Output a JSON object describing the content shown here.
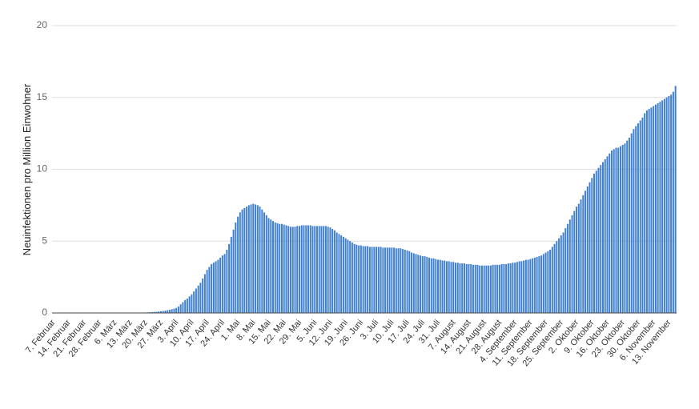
{
  "chart_data": {
    "type": "bar",
    "y_label": "Neuinfektionen pro Million Einwohner",
    "color": "#3f7fd0",
    "grid": true,
    "ylim": [
      0,
      20
    ],
    "yticks": [
      0,
      5,
      10,
      15,
      20
    ],
    "categories": [
      "7. Februar",
      null,
      null,
      null,
      null,
      null,
      null,
      "14. Februar",
      null,
      null,
      null,
      null,
      null,
      null,
      "21. Februar",
      null,
      null,
      null,
      null,
      null,
      null,
      "28. Februar",
      null,
      null,
      null,
      null,
      null,
      null,
      "6. März",
      null,
      null,
      null,
      null,
      null,
      null,
      "13. März",
      null,
      null,
      null,
      null,
      null,
      null,
      "20. März",
      null,
      null,
      null,
      null,
      null,
      null,
      "27. März",
      null,
      null,
      null,
      null,
      null,
      null,
      "3. April",
      null,
      null,
      null,
      null,
      null,
      null,
      "10. April",
      null,
      null,
      null,
      null,
      null,
      null,
      "17. April",
      null,
      null,
      null,
      null,
      null,
      null,
      "24. April",
      null,
      null,
      null,
      null,
      null,
      null,
      "1. Mai",
      null,
      null,
      null,
      null,
      null,
      null,
      "8. Mai",
      null,
      null,
      null,
      null,
      null,
      null,
      "15. Mai",
      null,
      null,
      null,
      null,
      null,
      null,
      "22. Mai",
      null,
      null,
      null,
      null,
      null,
      null,
      "29. Mai",
      null,
      null,
      null,
      null,
      null,
      null,
      "5. Juni",
      null,
      null,
      null,
      null,
      null,
      null,
      "12. Juni",
      null,
      null,
      null,
      null,
      null,
      null,
      "19. Juni",
      null,
      null,
      null,
      null,
      null,
      null,
      "26. Juni",
      null,
      null,
      null,
      null,
      null,
      null,
      "3. Juli",
      null,
      null,
      null,
      null,
      null,
      null,
      "10. Juli",
      null,
      null,
      null,
      null,
      null,
      null,
      "17. Juli",
      null,
      null,
      null,
      null,
      null,
      null,
      "24. Juli",
      null,
      null,
      null,
      null,
      null,
      null,
      "31. Juli",
      null,
      null,
      null,
      null,
      null,
      null,
      "7. August",
      null,
      null,
      null,
      null,
      null,
      null,
      "14. August",
      null,
      null,
      null,
      null,
      null,
      null,
      "21. August",
      null,
      null,
      null,
      null,
      null,
      null,
      "28. August",
      null,
      null,
      null,
      null,
      null,
      null,
      "4. September",
      null,
      null,
      null,
      null,
      null,
      null,
      "11. September",
      null,
      null,
      null,
      null,
      null,
      null,
      "18. September",
      null,
      null,
      null,
      null,
      null,
      null,
      "25. September",
      null,
      null,
      null,
      null,
      null,
      null,
      "2. Oktober",
      null,
      null,
      null,
      null,
      null,
      null,
      "9. Oktober",
      null,
      null,
      null,
      null,
      null,
      null,
      "16. Oktober",
      null,
      null,
      null,
      null,
      null,
      null,
      "23. Oktober",
      null,
      null,
      null,
      null,
      null,
      null,
      "30. Oktober",
      null,
      null,
      null,
      null,
      null,
      null,
      "6. November",
      null,
      null,
      null,
      null,
      null,
      null,
      "13. November",
      null,
      null,
      null
    ],
    "values": [
      0,
      0,
      0,
      0,
      0,
      0,
      0,
      0,
      0,
      0,
      0,
      0,
      0,
      0,
      0,
      0,
      0,
      0,
      0,
      0,
      0,
      0,
      0,
      0,
      0,
      0,
      0,
      0,
      0,
      0,
      0,
      0,
      0,
      0.01,
      0.01,
      0.01,
      0.01,
      0.01,
      0.02,
      0.02,
      0.02,
      0.03,
      0.03,
      0.04,
      0.05,
      0.06,
      0.07,
      0.08,
      0.1,
      0.12,
      0.14,
      0.16,
      0.19,
      0.22,
      0.26,
      0.3,
      0.35,
      0.45,
      0.6,
      0.75,
      0.9,
      1.0,
      1.15,
      1.3,
      1.5,
      1.7,
      1.9,
      2.1,
      2.4,
      2.7,
      3.0,
      3.2,
      3.4,
      3.5,
      3.6,
      3.7,
      3.85,
      4.0,
      4.1,
      4.4,
      4.8,
      5.3,
      5.8,
      6.3,
      6.7,
      7.0,
      7.2,
      7.3,
      7.4,
      7.5,
      7.55,
      7.6,
      7.55,
      7.5,
      7.4,
      7.2,
      7.0,
      6.8,
      6.6,
      6.5,
      6.4,
      6.3,
      6.25,
      6.2,
      6.2,
      6.15,
      6.1,
      6.05,
      6.0,
      6.0,
      6.0,
      6.05,
      6.05,
      6.1,
      6.1,
      6.1,
      6.1,
      6.1,
      6.05,
      6.05,
      6.05,
      6.05,
      6.05,
      6.05,
      6.05,
      6.0,
      5.95,
      5.85,
      5.75,
      5.6,
      5.5,
      5.4,
      5.3,
      5.2,
      5.1,
      5.0,
      4.9,
      4.8,
      4.75,
      4.7,
      4.7,
      4.65,
      4.65,
      4.65,
      4.6,
      4.6,
      4.6,
      4.6,
      4.6,
      4.6,
      4.55,
      4.55,
      4.55,
      4.55,
      4.55,
      4.55,
      4.5,
      4.5,
      4.5,
      4.45,
      4.4,
      4.35,
      4.3,
      4.2,
      4.15,
      4.1,
      4.05,
      4.0,
      3.95,
      3.95,
      3.9,
      3.85,
      3.8,
      3.8,
      3.75,
      3.7,
      3.7,
      3.65,
      3.65,
      3.6,
      3.6,
      3.55,
      3.55,
      3.5,
      3.5,
      3.45,
      3.45,
      3.45,
      3.4,
      3.4,
      3.4,
      3.35,
      3.35,
      3.35,
      3.3,
      3.3,
      3.3,
      3.3,
      3.3,
      3.3,
      3.35,
      3.35,
      3.35,
      3.35,
      3.4,
      3.4,
      3.4,
      3.45,
      3.45,
      3.5,
      3.5,
      3.55,
      3.6,
      3.6,
      3.65,
      3.7,
      3.7,
      3.75,
      3.8,
      3.85,
      3.9,
      3.95,
      4.0,
      4.1,
      4.2,
      4.3,
      4.4,
      4.6,
      4.8,
      5.0,
      5.2,
      5.4,
      5.6,
      5.9,
      6.2,
      6.5,
      6.8,
      7.1,
      7.4,
      7.6,
      7.9,
      8.2,
      8.5,
      8.8,
      9.1,
      9.4,
      9.7,
      9.9,
      10.1,
      10.3,
      10.5,
      10.7,
      10.9,
      11.1,
      11.3,
      11.4,
      11.5,
      11.5,
      11.6,
      11.7,
      11.8,
      12.0,
      12.2,
      12.5,
      12.8,
      13.0,
      13.2,
      13.4,
      13.6,
      13.9,
      14.1,
      14.2,
      14.3,
      14.4,
      14.5,
      14.6,
      14.7,
      14.8,
      14.9,
      15.0,
      15.1,
      15.2,
      15.4,
      15.8
    ]
  }
}
